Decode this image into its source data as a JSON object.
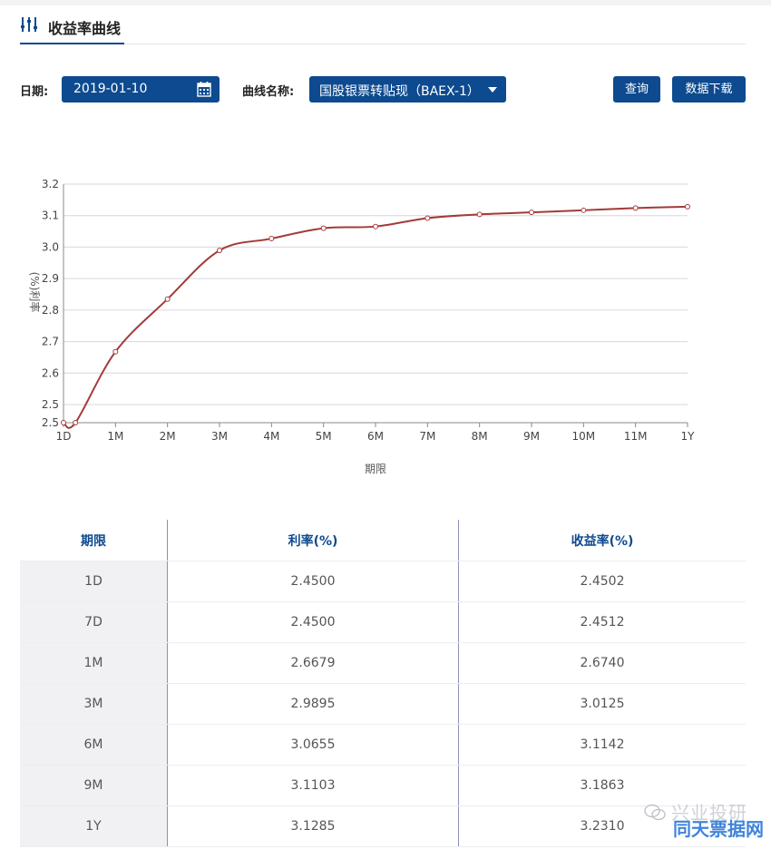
{
  "header": {
    "title": "收益率曲线",
    "icon": "sliders-icon"
  },
  "filters": {
    "date_label": "日期:",
    "date_value": "2019-01-10",
    "curve_label": "曲线名称:",
    "curve_value": "国股银票转贴现（BAEX-1）",
    "query_button": "查询",
    "download_button": "数据下载"
  },
  "chart_data": {
    "type": "line",
    "categories": [
      "1D",
      "1M",
      "2M",
      "3M",
      "4M",
      "5M",
      "6M",
      "7M",
      "8M",
      "9M",
      "10M",
      "11M",
      "1Y"
    ],
    "x": [
      0,
      0.23,
      1,
      2,
      3,
      4,
      5,
      6,
      7,
      8,
      9,
      10,
      11,
      12
    ],
    "series": [
      {
        "values": [
          2.45,
          2.45,
          2.6679,
          2.835,
          2.9895,
          3.027,
          3.06,
          3.0655,
          3.092,
          3.104,
          3.1103,
          3.117,
          3.124,
          3.1285
        ]
      }
    ],
    "xlabel": "期限",
    "ylabel": "(%)利率",
    "ylim": [
      2.5,
      3.2
    ],
    "yticks": [
      "2.5",
      "2.5",
      "2.6",
      "2.7",
      "2.8",
      "2.9",
      "3.0",
      "3.1",
      "3.2"
    ],
    "grid": true,
    "line_color": "#a33a3a"
  },
  "table": {
    "headers": [
      "期限",
      "利率(%)",
      "收益率(%)"
    ],
    "rows": [
      [
        "1D",
        "2.4500",
        "2.4502"
      ],
      [
        "7D",
        "2.4500",
        "2.4512"
      ],
      [
        "1M",
        "2.6679",
        "2.6740"
      ],
      [
        "3M",
        "2.9895",
        "3.0125"
      ],
      [
        "6M",
        "3.0655",
        "3.1142"
      ],
      [
        "9M",
        "3.1103",
        "3.1863"
      ],
      [
        "1Y",
        "3.1285",
        "3.2310"
      ]
    ]
  },
  "watermark": {
    "line1": "兴业投研",
    "line2": "同天票据网"
  }
}
